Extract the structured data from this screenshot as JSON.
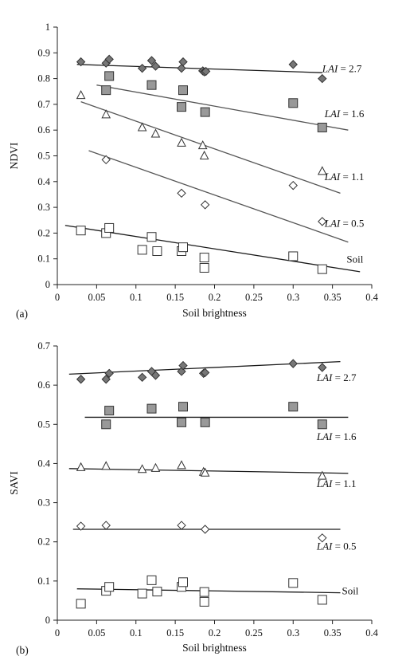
{
  "chart_data": [
    {
      "type": "scatter",
      "panel_label": "(a)",
      "xlabel": "Soil brightness",
      "ylabel": "NDVI",
      "xlim": [
        0,
        0.4
      ],
      "ylim": [
        0,
        1
      ],
      "x_ticks": [
        0,
        0.05,
        0.1,
        0.15,
        0.2,
        0.25,
        0.3,
        0.35,
        0.4
      ],
      "x_tick_labels": [
        "0",
        "0.05",
        "0.1",
        "0.15",
        "0.2",
        "0.25",
        "0.3",
        "0.35",
        "0.4"
      ],
      "y_ticks": [
        0,
        0.1,
        0.2,
        0.3,
        0.4,
        0.5,
        0.6,
        0.7,
        0.8,
        0.9,
        1
      ],
      "y_tick_labels": [
        "0",
        "0.1",
        "0.2",
        "0.3",
        "0.4",
        "0.5",
        "0.6",
        "0.7",
        "0.8",
        "0.9",
        "1"
      ],
      "grid": false,
      "series": [
        {
          "name": "LAI = 2.7",
          "marker": "diamond-filled",
          "color": "#777777",
          "points": [
            [
              0.03,
              0.865
            ],
            [
              0.062,
              0.86
            ],
            [
              0.066,
              0.875
            ],
            [
              0.108,
              0.84
            ],
            [
              0.12,
              0.87
            ],
            [
              0.125,
              0.848
            ],
            [
              0.158,
              0.84
            ],
            [
              0.16,
              0.865
            ],
            [
              0.185,
              0.83
            ],
            [
              0.187,
              0.826
            ],
            [
              0.189,
              0.828
            ],
            [
              0.3,
              0.855
            ],
            [
              0.337,
              0.8
            ]
          ],
          "fit": [
            [
              0.025,
              0.855
            ],
            [
              0.337,
              0.823
            ]
          ],
          "label_pos": [
            0.337,
            0.825
          ]
        },
        {
          "name": "LAI = 1.6",
          "marker": "square-filled",
          "color": "#999999",
          "points": [
            [
              0.062,
              0.755
            ],
            [
              0.066,
              0.81
            ],
            [
              0.12,
              0.775
            ],
            [
              0.158,
              0.69
            ],
            [
              0.16,
              0.755
            ],
            [
              0.188,
              0.67
            ],
            [
              0.3,
              0.705
            ],
            [
              0.337,
              0.61
            ]
          ],
          "fit": [
            [
              0.05,
              0.775
            ],
            [
              0.37,
              0.6
            ]
          ],
          "label_pos": [
            0.34,
            0.65
          ]
        },
        {
          "name": "LAI = 1.1",
          "marker": "triangle-open",
          "color": "#ffffff",
          "points": [
            [
              0.03,
              0.735
            ],
            [
              0.062,
              0.66
            ],
            [
              0.108,
              0.61
            ],
            [
              0.125,
              0.585
            ],
            [
              0.158,
              0.55
            ],
            [
              0.185,
              0.54
            ],
            [
              0.187,
              0.5
            ],
            [
              0.337,
              0.44
            ]
          ],
          "fit": [
            [
              0.03,
              0.71
            ],
            [
              0.36,
              0.355
            ]
          ],
          "label_pos": [
            0.34,
            0.405
          ]
        },
        {
          "name": "LAI = 0.5",
          "marker": "diamond-open",
          "color": "#ffffff",
          "points": [
            [
              0.062,
              0.485
            ],
            [
              0.158,
              0.355
            ],
            [
              0.188,
              0.31
            ],
            [
              0.3,
              0.385
            ],
            [
              0.337,
              0.245
            ]
          ],
          "fit": [
            [
              0.04,
              0.52
            ],
            [
              0.37,
              0.165
            ]
          ],
          "label_pos": [
            0.34,
            0.225
          ]
        },
        {
          "name": "Soil",
          "marker": "square-open",
          "color": "#ffffff",
          "points": [
            [
              0.03,
              0.21
            ],
            [
              0.062,
              0.2
            ],
            [
              0.066,
              0.22
            ],
            [
              0.108,
              0.135
            ],
            [
              0.12,
              0.185
            ],
            [
              0.127,
              0.13
            ],
            [
              0.158,
              0.13
            ],
            [
              0.16,
              0.145
            ],
            [
              0.187,
              0.105
            ],
            [
              0.187,
              0.065
            ],
            [
              0.3,
              0.11
            ],
            [
              0.337,
              0.06
            ]
          ],
          "fit": [
            [
              0.01,
              0.23
            ],
            [
              0.385,
              0.05
            ]
          ],
          "label_pos": [
            0.368,
            0.085
          ]
        }
      ]
    },
    {
      "type": "scatter",
      "panel_label": "(b)",
      "xlabel": "Soil brightness",
      "ylabel": "SAVI",
      "xlim": [
        0,
        0.4
      ],
      "ylim": [
        0,
        0.7
      ],
      "x_ticks": [
        0,
        0.05,
        0.1,
        0.15,
        0.2,
        0.25,
        0.3,
        0.35,
        0.4
      ],
      "x_tick_labels": [
        "0",
        "0.05",
        "0.1",
        "0.15",
        "0.2",
        "0.25",
        "0.3",
        "0.35",
        "0.4"
      ],
      "y_ticks": [
        0,
        0.1,
        0.2,
        0.3,
        0.4,
        0.5,
        0.6,
        0.7
      ],
      "y_tick_labels": [
        "0",
        "0.1",
        "0.2",
        "0.3",
        "0.4",
        "0.5",
        "0.6",
        "0.7"
      ],
      "grid": false,
      "series": [
        {
          "name": "LAI = 2.7",
          "marker": "diamond-filled",
          "color": "#777777",
          "points": [
            [
              0.03,
              0.615
            ],
            [
              0.062,
              0.615
            ],
            [
              0.066,
              0.63
            ],
            [
              0.108,
              0.62
            ],
            [
              0.12,
              0.635
            ],
            [
              0.125,
              0.625
            ],
            [
              0.158,
              0.635
            ],
            [
              0.16,
              0.65
            ],
            [
              0.186,
              0.63
            ],
            [
              0.188,
              0.632
            ],
            [
              0.3,
              0.655
            ],
            [
              0.337,
              0.645
            ]
          ],
          "fit": [
            [
              0.015,
              0.628
            ],
            [
              0.36,
              0.66
            ]
          ],
          "label_pos": [
            0.33,
            0.61
          ]
        },
        {
          "name": "LAI = 1.6",
          "marker": "square-filled",
          "color": "#999999",
          "points": [
            [
              0.062,
              0.5
            ],
            [
              0.066,
              0.535
            ],
            [
              0.12,
              0.54
            ],
            [
              0.158,
              0.505
            ],
            [
              0.16,
              0.545
            ],
            [
              0.188,
              0.505
            ],
            [
              0.3,
              0.545
            ],
            [
              0.337,
              0.5
            ]
          ],
          "fit": [
            [
              0.035,
              0.518
            ],
            [
              0.37,
              0.518
            ]
          ],
          "label_pos": [
            0.33,
            0.46
          ]
        },
        {
          "name": "LAI = 1.1",
          "marker": "triangle-open",
          "color": "#ffffff",
          "points": [
            [
              0.03,
              0.39
            ],
            [
              0.062,
              0.393
            ],
            [
              0.108,
              0.385
            ],
            [
              0.125,
              0.388
            ],
            [
              0.158,
              0.395
            ],
            [
              0.186,
              0.378
            ],
            [
              0.188,
              0.376
            ],
            [
              0.337,
              0.368
            ]
          ],
          "fit": [
            [
              0.015,
              0.387
            ],
            [
              0.37,
              0.375
            ]
          ],
          "label_pos": [
            0.33,
            0.34
          ]
        },
        {
          "name": "LAI = 0.5",
          "marker": "diamond-open",
          "color": "#ffffff",
          "points": [
            [
              0.03,
              0.24
            ],
            [
              0.062,
              0.242
            ],
            [
              0.158,
              0.242
            ],
            [
              0.188,
              0.232
            ],
            [
              0.337,
              0.21
            ]
          ],
          "fit": [
            [
              0.02,
              0.232
            ],
            [
              0.36,
              0.232
            ]
          ],
          "label_pos": [
            0.33,
            0.18
          ]
        },
        {
          "name": "Soil",
          "marker": "square-open",
          "color": "#ffffff",
          "points": [
            [
              0.03,
              0.042
            ],
            [
              0.062,
              0.075
            ],
            [
              0.066,
              0.085
            ],
            [
              0.108,
              0.068
            ],
            [
              0.12,
              0.102
            ],
            [
              0.127,
              0.073
            ],
            [
              0.158,
              0.085
            ],
            [
              0.16,
              0.097
            ],
            [
              0.187,
              0.072
            ],
            [
              0.187,
              0.047
            ],
            [
              0.3,
              0.095
            ],
            [
              0.337,
              0.052
            ]
          ],
          "fit": [
            [
              0.025,
              0.08
            ],
            [
              0.36,
              0.07
            ]
          ],
          "label_pos": [
            0.362,
            0.066
          ]
        }
      ]
    }
  ]
}
